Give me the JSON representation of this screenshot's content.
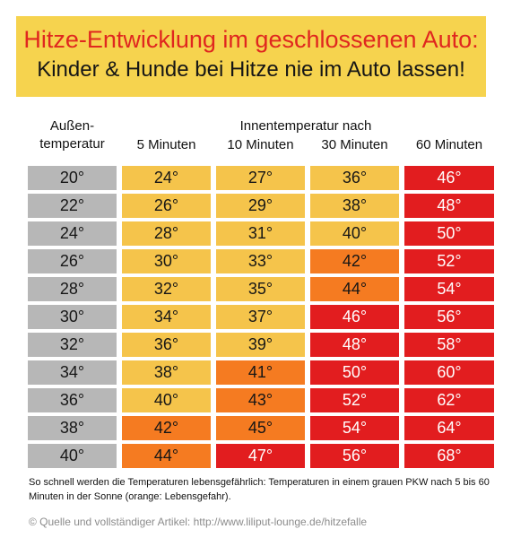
{
  "banner": {
    "title": "Hitze-Entwicklung im geschlossenen Auto:",
    "subtitle": "Kinder & Hunde bei Hitze nie im Auto lassen!"
  },
  "header": {
    "outside_line1": "Außen-",
    "outside_line2": "temperatur",
    "inside_group": "Innentemperatur nach",
    "col_5": "5 Minuten",
    "col_10": "10 Minuten",
    "col_30": "30 Minuten",
    "col_60": "60 Minuten"
  },
  "colors": {
    "grey": "#b7b7b7",
    "yellow": "#f5c44b",
    "orange": "#f57b21",
    "red": "#e21d1f"
  },
  "rows": [
    {
      "outside": "20°",
      "cells": [
        {
          "v": "24°",
          "c": "yellow"
        },
        {
          "v": "27°",
          "c": "yellow"
        },
        {
          "v": "36°",
          "c": "yellow"
        },
        {
          "v": "46°",
          "c": "red"
        }
      ]
    },
    {
      "outside": "22°",
      "cells": [
        {
          "v": "26°",
          "c": "yellow"
        },
        {
          "v": "29°",
          "c": "yellow"
        },
        {
          "v": "38°",
          "c": "yellow"
        },
        {
          "v": "48°",
          "c": "red"
        }
      ]
    },
    {
      "outside": "24°",
      "cells": [
        {
          "v": "28°",
          "c": "yellow"
        },
        {
          "v": "31°",
          "c": "yellow"
        },
        {
          "v": "40°",
          "c": "yellow"
        },
        {
          "v": "50°",
          "c": "red"
        }
      ]
    },
    {
      "outside": "26°",
      "cells": [
        {
          "v": "30°",
          "c": "yellow"
        },
        {
          "v": "33°",
          "c": "yellow"
        },
        {
          "v": "42°",
          "c": "orange"
        },
        {
          "v": "52°",
          "c": "red"
        }
      ]
    },
    {
      "outside": "28°",
      "cells": [
        {
          "v": "32°",
          "c": "yellow"
        },
        {
          "v": "35°",
          "c": "yellow"
        },
        {
          "v": "44°",
          "c": "orange"
        },
        {
          "v": "54°",
          "c": "red"
        }
      ]
    },
    {
      "outside": "30°",
      "cells": [
        {
          "v": "34°",
          "c": "yellow"
        },
        {
          "v": "37°",
          "c": "yellow"
        },
        {
          "v": "46°",
          "c": "red"
        },
        {
          "v": "56°",
          "c": "red"
        }
      ]
    },
    {
      "outside": "32°",
      "cells": [
        {
          "v": "36°",
          "c": "yellow"
        },
        {
          "v": "39°",
          "c": "yellow"
        },
        {
          "v": "48°",
          "c": "red"
        },
        {
          "v": "58°",
          "c": "red"
        }
      ]
    },
    {
      "outside": "34°",
      "cells": [
        {
          "v": "38°",
          "c": "yellow"
        },
        {
          "v": "41°",
          "c": "orange"
        },
        {
          "v": "50°",
          "c": "red"
        },
        {
          "v": "60°",
          "c": "red"
        }
      ]
    },
    {
      "outside": "36°",
      "cells": [
        {
          "v": "40°",
          "c": "yellow"
        },
        {
          "v": "43°",
          "c": "orange"
        },
        {
          "v": "52°",
          "c": "red"
        },
        {
          "v": "62°",
          "c": "red"
        }
      ]
    },
    {
      "outside": "38°",
      "cells": [
        {
          "v": "42°",
          "c": "orange"
        },
        {
          "v": "45°",
          "c": "orange"
        },
        {
          "v": "54°",
          "c": "red"
        },
        {
          "v": "64°",
          "c": "red"
        }
      ]
    },
    {
      "outside": "40°",
      "cells": [
        {
          "v": "44°",
          "c": "orange"
        },
        {
          "v": "47°",
          "c": "red"
        },
        {
          "v": "56°",
          "c": "red"
        },
        {
          "v": "68°",
          "c": "red"
        }
      ]
    }
  ],
  "note": "So schnell werden die Temperaturen lebensgefährlich: Temperaturen in einem grauen PKW nach 5 bis 60 Minuten in der Sonne (orange: Lebensgefahr).",
  "source": "© Quelle und vollständiger Artikel: http://www.liliput-lounge.de/hitzefalle"
}
